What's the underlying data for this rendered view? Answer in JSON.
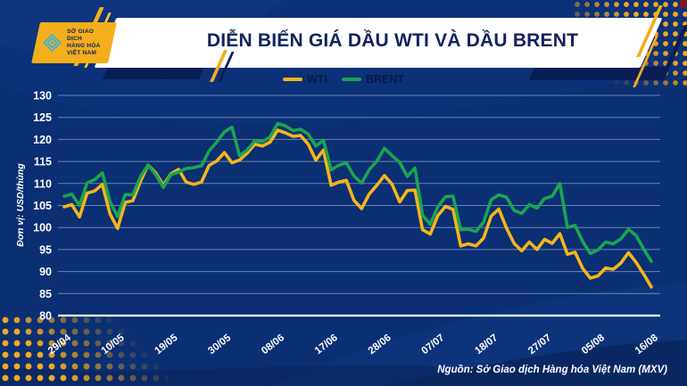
{
  "header": {
    "logo_lines": [
      "SỞ GIAO DỊCH",
      "HÀNG HÓA",
      "VIỆT NAM"
    ],
    "title": "DIỄN BIẾN GIÁ DẦU WTI VÀ DẦU BRENT"
  },
  "source_note": "Nguồn: Sở Giao dịch Hàng hóa Việt Nam (MXV)",
  "colors": {
    "background": "#0A2F73",
    "banner": "#FFFFFF",
    "title_text": "#12225E",
    "accent_yellow": "#F3AE1B",
    "logo_icon_cyan": "#2BB6E9",
    "wti": "#F5B41A",
    "brent": "#1BA351",
    "axis_text": "#FFFFFF",
    "legend_text": "#0A1A45",
    "gridline": "#C8D4EE"
  },
  "chart_data": {
    "type": "line",
    "title": "DIỄN BIẾN GIÁ DẦU WTI VÀ DẦU BRENT",
    "ylabel": "Đơn vị: USD/thùng",
    "ylim": [
      80,
      130
    ],
    "y_ticks": [
      130,
      125,
      120,
      115,
      110,
      105,
      100,
      95,
      90,
      85,
      80
    ],
    "grid": true,
    "legend_position": "top-center",
    "x_tick_labels": [
      "29/04",
      "10/05",
      "19/05",
      "30/05",
      "08/06",
      "17/06",
      "28/06",
      "07/07",
      "18/07",
      "27/07",
      "05/08",
      "16/08"
    ],
    "x_tick_indices": [
      0,
      7,
      14,
      21,
      28,
      35,
      42,
      49,
      56,
      63,
      70,
      77
    ],
    "dates": [
      "29/04",
      "02/05",
      "03/05",
      "04/05",
      "05/05",
      "06/05",
      "09/05",
      "10/05",
      "11/05",
      "12/05",
      "13/05",
      "16/05",
      "17/05",
      "18/05",
      "19/05",
      "20/05",
      "23/05",
      "24/05",
      "25/05",
      "26/05",
      "27/05",
      "30/05",
      "31/05",
      "01/06",
      "02/06",
      "03/06",
      "06/06",
      "07/06",
      "08/06",
      "09/06",
      "10/06",
      "13/06",
      "14/06",
      "15/06",
      "16/06",
      "17/06",
      "20/06",
      "21/06",
      "22/06",
      "23/06",
      "24/06",
      "27/06",
      "28/06",
      "29/06",
      "30/06",
      "01/07",
      "04/07",
      "05/07",
      "06/07",
      "07/07",
      "08/07",
      "11/07",
      "12/07",
      "13/07",
      "14/07",
      "15/07",
      "18/07",
      "19/07",
      "20/07",
      "21/07",
      "22/07",
      "25/07",
      "26/07",
      "27/07",
      "28/07",
      "29/07",
      "01/08",
      "02/08",
      "03/08",
      "04/08",
      "05/08",
      "08/08",
      "09/08",
      "10/08",
      "11/08",
      "12/08",
      "15/08",
      "16/08"
    ],
    "series": [
      {
        "name": "WTI",
        "color": "#F5B41A",
        "values": [
          104.7,
          105.2,
          102.4,
          107.8,
          108.3,
          109.8,
          103.1,
          99.8,
          105.7,
          106.1,
          110.5,
          114.2,
          112.4,
          109.6,
          112.2,
          113.2,
          110.3,
          109.8,
          110.3,
          114.1,
          115.1,
          117.0,
          114.7,
          115.3,
          116.9,
          118.9,
          118.5,
          119.4,
          122.1,
          121.5,
          120.7,
          120.9,
          118.9,
          115.3,
          117.6,
          109.6,
          110.3,
          110.7,
          106.2,
          104.3,
          107.6,
          109.6,
          111.8,
          109.8,
          105.8,
          108.4,
          108.5,
          99.5,
          98.5,
          102.7,
          104.8,
          104.1,
          95.8,
          96.3,
          95.8,
          97.6,
          102.6,
          104.2,
          99.9,
          96.4,
          94.7,
          96.7,
          95.0,
          97.3,
          96.4,
          98.6,
          93.9,
          94.4,
          90.7,
          88.5,
          89.0,
          90.8,
          90.5,
          91.9,
          94.3,
          92.1,
          89.4,
          86.5
        ]
      },
      {
        "name": "BRENT",
        "color": "#1BA351",
        "values": [
          107.1,
          107.6,
          105.0,
          110.1,
          110.9,
          112.4,
          105.9,
          102.5,
          107.5,
          107.4,
          111.6,
          114.2,
          112.0,
          109.1,
          112.0,
          112.6,
          113.4,
          113.6,
          114.0,
          117.4,
          119.4,
          121.7,
          122.8,
          116.3,
          117.6,
          119.7,
          119.5,
          120.6,
          123.6,
          123.1,
          122.0,
          122.3,
          121.2,
          118.5,
          119.8,
          113.1,
          114.1,
          114.7,
          111.7,
          110.1,
          113.1,
          115.1,
          118.0,
          116.3,
          114.8,
          111.6,
          113.5,
          102.8,
          100.7,
          104.7,
          107.0,
          107.1,
          99.5,
          99.6,
          99.1,
          101.2,
          106.3,
          107.4,
          106.9,
          103.9,
          103.2,
          105.2,
          104.4,
          106.6,
          107.1,
          110.0,
          100.0,
          100.5,
          96.8,
          94.1,
          94.9,
          96.7,
          96.3,
          97.4,
          99.6,
          98.2,
          95.1,
          92.3
        ]
      }
    ]
  }
}
